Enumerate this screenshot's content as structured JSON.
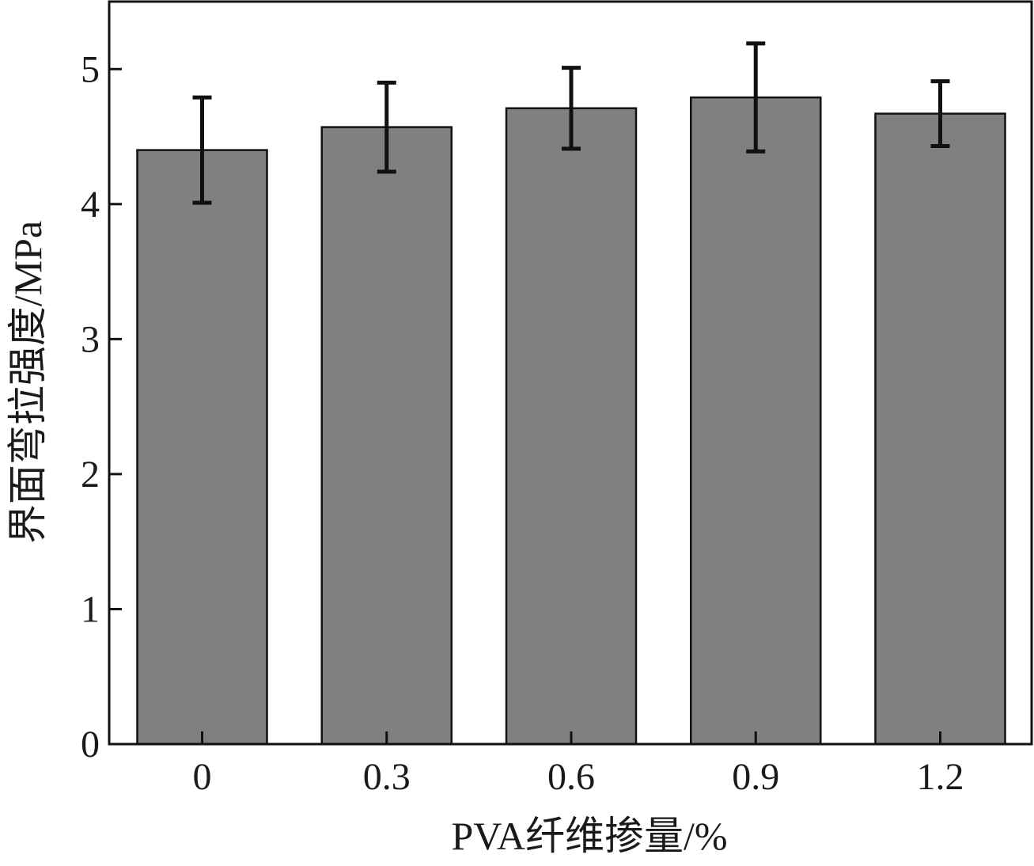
{
  "chart_data": {
    "type": "bar",
    "categories": [
      "0",
      "0.3",
      "0.6",
      "0.9",
      "1.2"
    ],
    "values": [
      4.4,
      4.57,
      4.71,
      4.79,
      4.67
    ],
    "errors": [
      0.39,
      0.33,
      0.3,
      0.4,
      0.24
    ],
    "xlabel": "PVA纤维掺量/%",
    "ylabel": "界面弯拉强度/MPa",
    "ylim": [
      0,
      5.5
    ],
    "yticks": [
      "0",
      "1",
      "2",
      "3",
      "4",
      "5"
    ],
    "ytick_values": [
      0,
      1,
      2,
      3,
      4,
      5
    ],
    "grid": false,
    "colors": {
      "bar": "#808080",
      "bar_edge": "#111111",
      "error_bar": "#111111",
      "axis": "#111111"
    }
  }
}
